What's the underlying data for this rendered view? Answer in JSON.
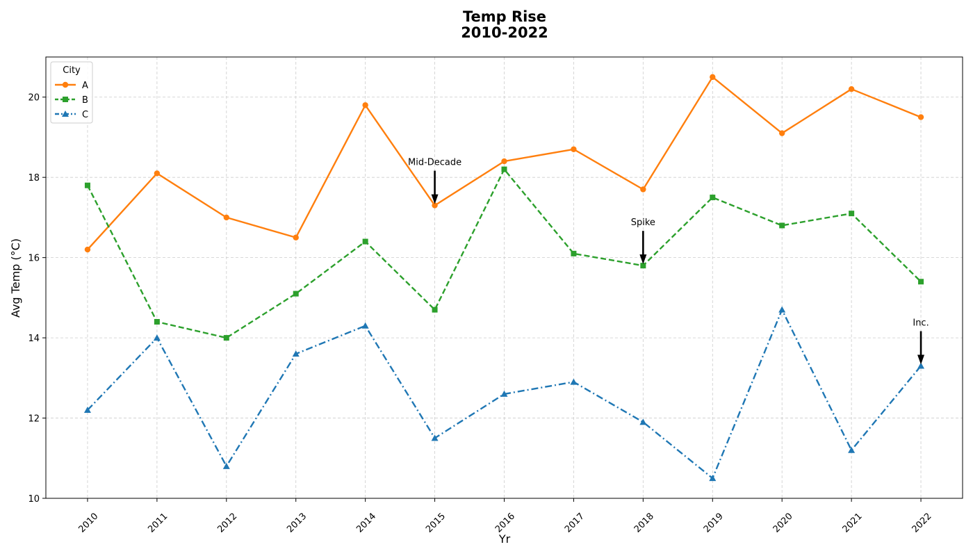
{
  "chart_data": {
    "type": "line",
    "title": [
      "Temp Rise",
      "2010-2022"
    ],
    "xlabel": "Yr",
    "ylabel": "Avg Temp (°C)",
    "ylim": [
      10,
      21
    ],
    "yticks": [
      10,
      12,
      14,
      16,
      18,
      20
    ],
    "grid": true,
    "legend": {
      "title": "City",
      "placement": "top-left"
    },
    "x": [
      2010,
      2011,
      2012,
      2013,
      2014,
      2015,
      2016,
      2017,
      2018,
      2019,
      2020,
      2021,
      2022
    ],
    "series": [
      {
        "name": "A",
        "color": "#ff7f0e",
        "line_style": "solid",
        "marker": "circle",
        "values": [
          16.2,
          18.1,
          17.0,
          16.5,
          19.8,
          17.3,
          18.4,
          18.7,
          17.7,
          20.5,
          19.1,
          20.2,
          19.5
        ]
      },
      {
        "name": "B",
        "color": "#2ca02c",
        "line_style": "dashed",
        "marker": "square",
        "values": [
          17.8,
          14.4,
          14.0,
          15.1,
          16.4,
          14.7,
          18.2,
          16.1,
          15.8,
          17.5,
          16.8,
          17.1,
          15.4
        ]
      },
      {
        "name": "C",
        "color": "#1f77b4",
        "line_style": "dashdot",
        "marker": "triangle",
        "values": [
          12.2,
          14.0,
          10.8,
          13.6,
          14.3,
          11.5,
          12.6,
          12.9,
          11.9,
          10.5,
          14.7,
          11.2,
          13.3
        ]
      }
    ],
    "annotations": [
      {
        "text": "Mid-Decade",
        "x": 2015,
        "y": 17.3
      },
      {
        "text": "Spike",
        "x": 2018,
        "y": 15.8
      },
      {
        "text": "Inc.",
        "x": 2022,
        "y": 13.3
      }
    ]
  }
}
